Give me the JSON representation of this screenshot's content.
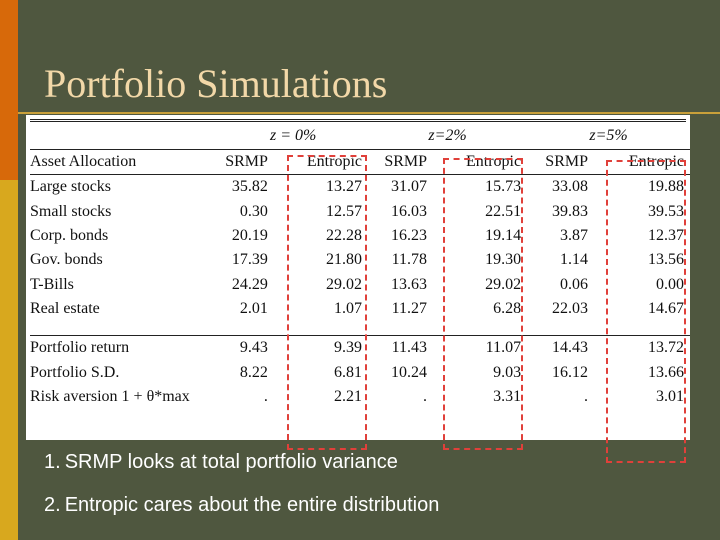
{
  "slide": {
    "title": "Portfolio Simulations",
    "colors": {
      "background": "#4f573f",
      "title": "#f2d8a8",
      "accent_orange": "#d7690a",
      "accent_yellow": "#d8a81e",
      "dashed_box": "#e0403a"
    }
  },
  "table": {
    "group_headers": [
      "z = 0%",
      "z=2%",
      "z=5%"
    ],
    "column_headers": [
      "Asset Allocation",
      "SRMP",
      "Entropic",
      "SRMP",
      "Entropic",
      "SRMP",
      "Entropic"
    ],
    "rows": [
      [
        "Large stocks",
        "35.82",
        "13.27",
        "31.07",
        "15.73",
        "33.08",
        "19.88"
      ],
      [
        "Small stocks",
        "0.30",
        "12.57",
        "16.03",
        "22.51",
        "39.83",
        "39.53"
      ],
      [
        "Corp. bonds",
        "20.19",
        "22.28",
        "16.23",
        "19.14",
        "3.87",
        "12.37"
      ],
      [
        "Gov. bonds",
        "17.39",
        "21.80",
        "11.78",
        "19.30",
        "1.14",
        "13.56"
      ],
      [
        "T-Bills",
        "24.29",
        "29.02",
        "13.63",
        "29.02",
        "0.06",
        "0.00"
      ],
      [
        "Real estate",
        "2.01",
        "1.07",
        "11.27",
        "6.28",
        "22.03",
        "14.67"
      ]
    ],
    "summary_rows": [
      [
        "Portfolio return",
        "9.43",
        "9.39",
        "11.43",
        "11.07",
        "14.43",
        "13.72"
      ],
      [
        "Portfolio S.D.",
        "8.22",
        "6.81",
        "10.24",
        "9.03",
        "16.12",
        "13.66"
      ],
      [
        "Risk aversion 1 + θ*max",
        ".",
        "2.21",
        ".",
        "3.31",
        ".",
        "3.01"
      ]
    ]
  },
  "notes": [
    {
      "num": "1.",
      "text": "SRMP looks at total portfolio variance"
    },
    {
      "num": "2.",
      "text": "Entropic cares about the entire distribution"
    }
  ]
}
